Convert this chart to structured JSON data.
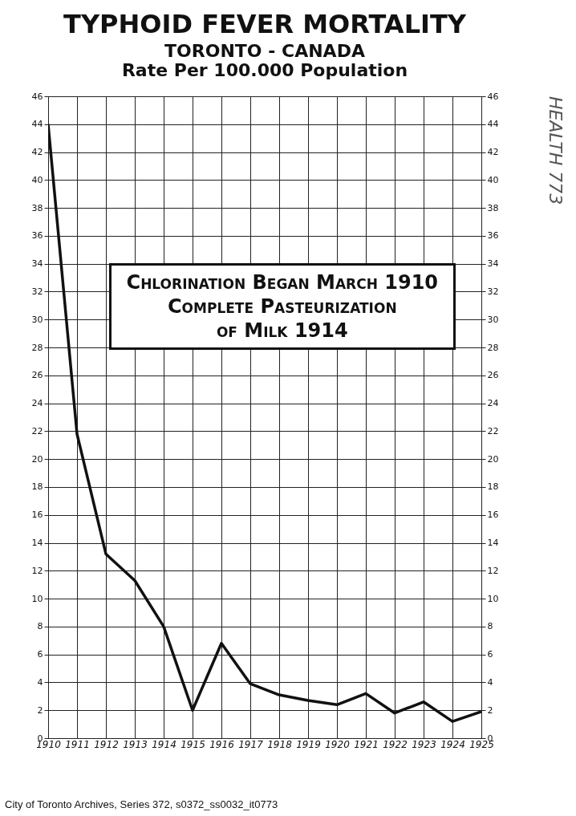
{
  "chart_data": {
    "type": "line",
    "title": "TYPHOID FEVER MORTALITY",
    "subtitle": "TORONTO - CANADA",
    "ylabel": "Rate Per 100.000 Population",
    "categories": [
      "1910",
      "1911",
      "1912",
      "1913",
      "1914",
      "1915",
      "1916",
      "1917",
      "1918",
      "1919",
      "1920",
      "1921",
      "1922",
      "1923",
      "1924",
      "1925"
    ],
    "series": [
      {
        "color": "#111111",
        "values": [
          44,
          21.8,
          13.2,
          11.3,
          8,
          2,
          6.8,
          3.9,
          3.1,
          2.7,
          2.4,
          3.2,
          1.8,
          2.6,
          1.2,
          1.9
        ]
      }
    ],
    "ylim": [
      0,
      46
    ],
    "yticks": [
      0,
      2,
      4,
      6,
      8,
      10,
      12,
      14,
      16,
      18,
      20,
      22,
      24,
      26,
      28,
      30,
      32,
      34,
      36,
      38,
      40,
      42,
      44,
      46
    ],
    "y2lim": [
      0,
      46
    ],
    "y2ticks": [
      0,
      2,
      4,
      6,
      8,
      10,
      12,
      14,
      16,
      18,
      20,
      22,
      24,
      26,
      28,
      30,
      32,
      34,
      36,
      38,
      40,
      42,
      44,
      46
    ],
    "grid": true,
    "annotations": [
      "Chlorination Began March 1910\nComplete Pasteurization\nof Milk 1914",
      "City of Toronto Archives, Series 372, s0372_ss0032_it0773",
      "HEALTH 773"
    ]
  }
}
